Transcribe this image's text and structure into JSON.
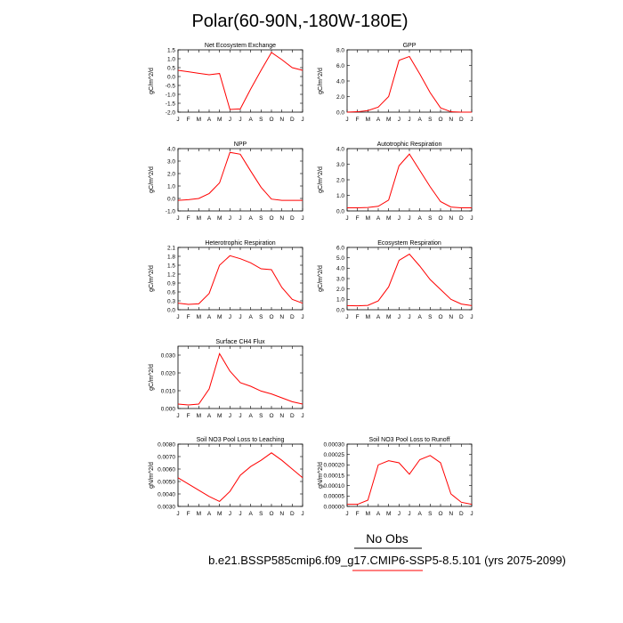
{
  "figure": {
    "title": "Polar(60-90N,-180W-180E)",
    "no_obs_label": "No Obs",
    "case_label": "b.e21.BSSP585cmip6.f09_g17.CMIP6-SSP5-8.5.101 (yrs 2075-2099)",
    "colors": {
      "series": "#ff0000",
      "axes": "#000000",
      "no_obs_rule": "#000000",
      "case_rule": "#ff0000"
    }
  },
  "chart_data": [
    {
      "type": "line",
      "title": "Net Ecosystem Exchange",
      "ylabel": "gC/m^2/d",
      "x": [
        "J",
        "F",
        "M",
        "A",
        "M",
        "J",
        "J",
        "A",
        "S",
        "O",
        "N",
        "D",
        "J"
      ],
      "ylim": [
        -2.0,
        1.5
      ],
      "yticks": [
        "1.5",
        "1.0",
        "0.5",
        "0.0",
        "-0.5",
        "-1.0",
        "-1.5",
        "-2.0"
      ],
      "yticks_values": [
        1.5,
        1.0,
        0.5,
        0.0,
        -0.5,
        -1.0,
        -1.5,
        -2.0
      ],
      "series": [
        {
          "values": [
            0.35,
            0.27,
            0.18,
            0.1,
            0.17,
            -1.85,
            -1.82,
            -0.7,
            0.35,
            1.35,
            0.95,
            0.5,
            0.35
          ]
        }
      ]
    },
    {
      "type": "line",
      "title": "GPP",
      "ylabel": "gC/m^2/d",
      "x": [
        "J",
        "F",
        "M",
        "A",
        "M",
        "J",
        "J",
        "A",
        "S",
        "O",
        "N",
        "D",
        "J"
      ],
      "ylim": [
        0.0,
        8.0
      ],
      "yticks": [
        "8.0",
        "6.0",
        "4.0",
        "2.0",
        "0.0"
      ],
      "yticks_values": [
        8.0,
        6.0,
        4.0,
        2.0,
        0.0
      ],
      "series": [
        {
          "values": [
            0.0,
            0.05,
            0.2,
            0.65,
            2.0,
            6.65,
            7.15,
            4.9,
            2.5,
            0.55,
            0.05,
            0.0,
            0.0
          ]
        }
      ]
    },
    {
      "type": "line",
      "title": "NPP",
      "ylabel": "gC/m^2/d",
      "x": [
        "J",
        "F",
        "M",
        "A",
        "M",
        "J",
        "J",
        "A",
        "S",
        "O",
        "N",
        "D",
        "J"
      ],
      "ylim": [
        -1.0,
        4.0
      ],
      "yticks": [
        "4.0",
        "3.0",
        "2.0",
        "1.0",
        "0.0",
        "-1.0"
      ],
      "yticks_values": [
        4.0,
        3.0,
        2.0,
        1.0,
        0.0,
        -1.0
      ],
      "series": [
        {
          "values": [
            -0.15,
            -0.1,
            0.0,
            0.4,
            1.25,
            3.7,
            3.55,
            2.2,
            0.9,
            -0.05,
            -0.15,
            -0.15,
            -0.15
          ]
        }
      ]
    },
    {
      "type": "line",
      "title": "Autotrophic Respiration",
      "ylabel": "gC/m^2/d",
      "x": [
        "J",
        "F",
        "M",
        "A",
        "M",
        "J",
        "J",
        "A",
        "S",
        "O",
        "N",
        "D",
        "J"
      ],
      "ylim": [
        0.0,
        4.0
      ],
      "yticks": [
        "4.0",
        "3.0",
        "2.0",
        "1.0",
        "0.0"
      ],
      "yticks_values": [
        4.0,
        3.0,
        2.0,
        1.0,
        0.0
      ],
      "series": [
        {
          "values": [
            0.2,
            0.2,
            0.22,
            0.3,
            0.7,
            2.9,
            3.65,
            2.6,
            1.55,
            0.6,
            0.25,
            0.2,
            0.2
          ]
        }
      ]
    },
    {
      "type": "line",
      "title": "Heterotrophic Respiration",
      "ylabel": "gC/m^2/d",
      "x": [
        "J",
        "F",
        "M",
        "A",
        "M",
        "J",
        "J",
        "A",
        "S",
        "O",
        "N",
        "D",
        "J"
      ],
      "ylim": [
        0.0,
        2.1
      ],
      "yticks": [
        "2.1",
        "1.8",
        "1.5",
        "1.2",
        "0.9",
        "0.6",
        "0.3",
        "0.0"
      ],
      "yticks_values": [
        2.1,
        1.8,
        1.5,
        1.2,
        0.9,
        0.6,
        0.3,
        0.0
      ],
      "series": [
        {
          "values": [
            0.22,
            0.18,
            0.2,
            0.55,
            1.5,
            1.82,
            1.72,
            1.58,
            1.38,
            1.35,
            0.75,
            0.35,
            0.22
          ]
        }
      ]
    },
    {
      "type": "line",
      "title": "Ecosystem Respiration",
      "ylabel": "gC/m^2/d",
      "x": [
        "J",
        "F",
        "M",
        "A",
        "M",
        "J",
        "J",
        "A",
        "S",
        "O",
        "N",
        "D",
        "J"
      ],
      "ylim": [
        0.0,
        6.0
      ],
      "yticks": [
        "6.0",
        "5.0",
        "4.0",
        "3.0",
        "2.0",
        "1.0",
        "0.0"
      ],
      "yticks_values": [
        6.0,
        5.0,
        4.0,
        3.0,
        2.0,
        1.0,
        0.0
      ],
      "series": [
        {
          "values": [
            0.4,
            0.38,
            0.42,
            0.85,
            2.2,
            4.75,
            5.35,
            4.2,
            2.9,
            1.95,
            1.0,
            0.55,
            0.4
          ]
        }
      ]
    },
    {
      "type": "line",
      "title": "Surface CH4 Flux",
      "ylabel": "gC/m^2/d",
      "x": [
        "J",
        "F",
        "M",
        "A",
        "M",
        "J",
        "J",
        "A",
        "S",
        "O",
        "N",
        "D",
        "J"
      ],
      "ylim": [
        0.0,
        0.035
      ],
      "yticks": [
        "0.030",
        "0.020",
        "0.010",
        "0.000"
      ],
      "yticks_values": [
        0.03,
        0.02,
        0.01,
        0.0
      ],
      "series": [
        {
          "values": [
            0.0025,
            0.002,
            0.0025,
            0.011,
            0.0308,
            0.021,
            0.0145,
            0.0125,
            0.0098,
            0.0082,
            0.006,
            0.0038,
            0.0025
          ]
        }
      ]
    },
    {
      "type": "line",
      "title": "Soil NO3 Pool Loss to Leaching",
      "ylabel": "gN/m^2/d",
      "x": [
        "J",
        "F",
        "M",
        "A",
        "M",
        "J",
        "J",
        "A",
        "S",
        "O",
        "N",
        "D",
        "J"
      ],
      "ylim": [
        0.003,
        0.008
      ],
      "yticks": [
        "0.0080",
        "0.0070",
        "0.0060",
        "0.0050",
        "0.0040",
        "0.0030"
      ],
      "yticks_values": [
        0.008,
        0.007,
        0.006,
        0.005,
        0.004,
        0.003
      ],
      "series": [
        {
          "values": [
            0.0053,
            0.0048,
            0.0043,
            0.0038,
            0.0034,
            0.0042,
            0.0055,
            0.0062,
            0.0067,
            0.0073,
            0.0067,
            0.006,
            0.0053
          ]
        }
      ]
    },
    {
      "type": "line",
      "title": "Soil NO3 Pool Loss to Runoff",
      "ylabel": "gN/m^2/d",
      "x": [
        "J",
        "F",
        "M",
        "A",
        "M",
        "J",
        "J",
        "A",
        "S",
        "O",
        "N",
        "D",
        "J"
      ],
      "ylim": [
        0.0,
        0.0003
      ],
      "yticks": [
        "0.00030",
        "0.00025",
        "0.00020",
        "0.00015",
        "0.00010",
        "0.00005",
        "0.00000"
      ],
      "yticks_values": [
        0.0003,
        0.00025,
        0.0002,
        0.00015,
        0.0001,
        5e-05,
        0.0
      ],
      "series": [
        {
          "values": [
            1e-05,
            1e-05,
            3e-05,
            0.0002,
            0.00022,
            0.00021,
            0.000155,
            0.000225,
            0.000245,
            0.00021,
            6e-05,
            2e-05,
            1e-05
          ]
        }
      ]
    }
  ]
}
